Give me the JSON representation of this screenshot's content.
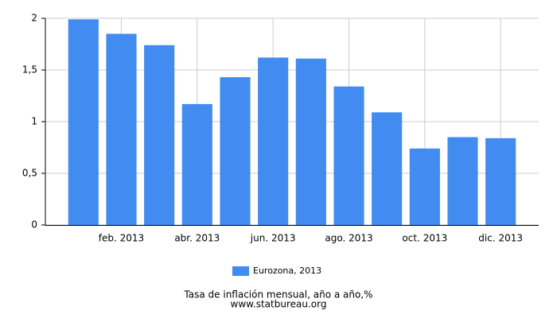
{
  "chart_data": {
    "type": "bar",
    "title": "Tasa de inflación mensual, año a año,%",
    "source": "www.statbureau.org",
    "categories": [
      null,
      "feb. 2013",
      null,
      "abr. 2013",
      null,
      "jun. 2013",
      null,
      "ago. 2013",
      null,
      "oct. 2013",
      null,
      "dic. 2013"
    ],
    "series": [
      {
        "name": "Eurozona, 2013",
        "color": "#428bf0",
        "values": [
          1.99,
          1.85,
          1.74,
          1.17,
          1.43,
          1.62,
          1.61,
          1.34,
          1.09,
          0.74,
          0.85,
          0.84
        ]
      }
    ],
    "ylim": [
      0,
      2
    ],
    "yticks": [
      0,
      {
        "value": 0.5,
        "label": "0,5"
      },
      1,
      {
        "value": 1.5,
        "label": "1,5"
      },
      2
    ],
    "grid": true
  }
}
